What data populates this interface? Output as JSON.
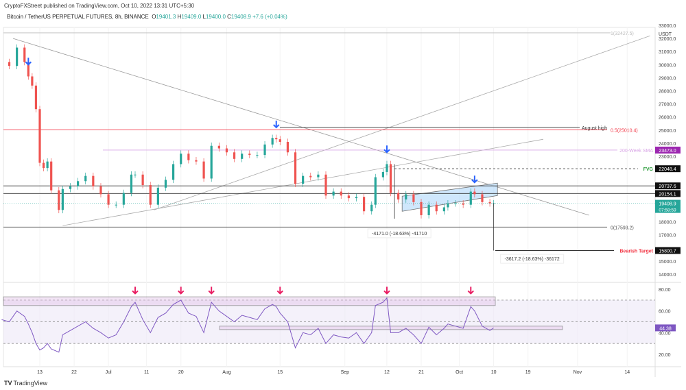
{
  "header": {
    "published": "CryptoFXStreet published on TradingView.com, Oct 10, 2022 13:31 UTC+5:30",
    "symbol": "Bitcoin / TetherUS PERPETUAL FUTURES, 8h, BINANCE",
    "o_label": "O",
    "o": "19401.3",
    "h_label": "H",
    "h": "19409.0",
    "l_label": "L",
    "l": "19400.0",
    "c_label": "C",
    "c": "19408.9",
    "change": "+7.6 (+0.04%)"
  },
  "footer": {
    "brand": "TradingView"
  },
  "colors": {
    "up": "#26a69a",
    "down": "#ef5350",
    "rsi": "#7e57c2",
    "arrow_blue": "#2962ff",
    "arrow_pink": "#e91e63",
    "fib": "#f23645",
    "sma": "#c678dd",
    "fvg": "#2e9e3e",
    "channel": "#bbdefb"
  },
  "chart_data": {
    "type": "candlestick",
    "currency": "USDT",
    "price_ticks": [
      "33000.0",
      "32000.0",
      "31000.0",
      "30000.0",
      "29000.0",
      "28000.0",
      "27000.0",
      "26000.0",
      "25000.0",
      "24000.0",
      "23000.0",
      "18000.0",
      "17000.0",
      "15000.0",
      "14000.0"
    ],
    "rsi_ticks": [
      "80.00",
      "60.00",
      "40.00",
      "20.00"
    ],
    "x_ticks": [
      {
        "date": "2022-06-13",
        "label": "13"
      },
      {
        "date": "2022-06-22",
        "label": "22"
      },
      {
        "date": "2022-07-01",
        "label": "Jul"
      },
      {
        "date": "2022-07-11",
        "label": "11"
      },
      {
        "date": "2022-07-20",
        "label": "20"
      },
      {
        "date": "2022-08-01",
        "label": "Aug"
      },
      {
        "date": "2022-08-15",
        "label": "15"
      },
      {
        "date": "2022-09-01",
        "label": "Sep"
      },
      {
        "date": "2022-09-12",
        "label": "12"
      },
      {
        "date": "2022-09-21",
        "label": "21"
      },
      {
        "date": "2022-10-01",
        "label": "Oct"
      },
      {
        "date": "2022-10-10",
        "label": "10"
      },
      {
        "date": "2022-10-19",
        "label": "19"
      },
      {
        "date": "2022-11-01",
        "label": "Nov"
      },
      {
        "date": "2022-11-14",
        "label": "14"
      }
    ],
    "closes": [
      [
        "2022-06-03",
        30200
      ],
      [
        "2022-06-05",
        29900
      ],
      [
        "2022-06-07",
        31300
      ],
      [
        "2022-06-09",
        30200
      ],
      [
        "2022-06-10",
        29100
      ],
      [
        "2022-06-11",
        28400
      ],
      [
        "2022-06-12",
        26600
      ],
      [
        "2022-06-13",
        22500
      ],
      [
        "2022-06-14",
        22100
      ],
      [
        "2022-06-15",
        22600
      ],
      [
        "2022-06-16",
        20400
      ],
      [
        "2022-06-18",
        18900
      ],
      [
        "2022-06-19",
        20500
      ],
      [
        "2022-06-21",
        20700
      ],
      [
        "2022-06-23",
        21100
      ],
      [
        "2022-06-25",
        21500
      ],
      [
        "2022-06-27",
        20700
      ],
      [
        "2022-06-29",
        20100
      ],
      [
        "2022-07-01",
        19300
      ],
      [
        "2022-07-03",
        19300
      ],
      [
        "2022-07-05",
        20200
      ],
      [
        "2022-07-07",
        21600
      ],
      [
        "2022-07-08",
        21600
      ],
      [
        "2022-07-10",
        20800
      ],
      [
        "2022-07-12",
        19300
      ],
      [
        "2022-07-14",
        20600
      ],
      [
        "2022-07-16",
        21200
      ],
      [
        "2022-07-18",
        22400
      ],
      [
        "2022-07-20",
        23200
      ],
      [
        "2022-07-22",
        22700
      ],
      [
        "2022-07-24",
        22600
      ],
      [
        "2022-07-26",
        21300
      ],
      [
        "2022-07-28",
        23800
      ],
      [
        "2022-07-30",
        23600
      ],
      [
        "2022-08-01",
        23300
      ],
      [
        "2022-08-03",
        22800
      ],
      [
        "2022-08-05",
        23200
      ],
      [
        "2022-08-07",
        23100
      ],
      [
        "2022-08-09",
        23100
      ],
      [
        "2022-08-11",
        23900
      ],
      [
        "2022-08-13",
        24400
      ],
      [
        "2022-08-14",
        24300
      ],
      [
        "2022-08-15",
        24100
      ],
      [
        "2022-08-17",
        23300
      ],
      [
        "2022-08-19",
        20900
      ],
      [
        "2022-08-21",
        21500
      ],
      [
        "2022-08-23",
        21400
      ],
      [
        "2022-08-25",
        21600
      ],
      [
        "2022-08-27",
        20000
      ],
      [
        "2022-08-29",
        20300
      ],
      [
        "2022-08-31",
        20000
      ],
      [
        "2022-09-02",
        19800
      ],
      [
        "2022-09-04",
        19900
      ],
      [
        "2022-09-06",
        18800
      ],
      [
        "2022-09-08",
        19300
      ],
      [
        "2022-09-09",
        21400
      ],
      [
        "2022-09-11",
        21800
      ],
      [
        "2022-09-12",
        22400
      ],
      [
        "2022-09-13",
        20200
      ],
      [
        "2022-09-15",
        19700
      ],
      [
        "2022-09-17",
        20100
      ],
      [
        "2022-09-19",
        19500
      ],
      [
        "2022-09-21",
        18500
      ],
      [
        "2022-09-23",
        19300
      ],
      [
        "2022-09-25",
        18800
      ],
      [
        "2022-09-27",
        19100
      ],
      [
        "2022-09-28",
        19400
      ],
      [
        "2022-09-30",
        19400
      ],
      [
        "2022-10-02",
        19300
      ],
      [
        "2022-10-04",
        20300
      ],
      [
        "2022-10-05",
        20100
      ],
      [
        "2022-10-07",
        19500
      ],
      [
        "2022-10-09",
        19400
      ],
      [
        "2022-10-10",
        19408.9
      ]
    ],
    "rsi": [
      [
        "2022-06-03",
        52
      ],
      [
        "2022-06-05",
        50
      ],
      [
        "2022-06-07",
        60
      ],
      [
        "2022-06-09",
        55
      ],
      [
        "2022-06-10",
        48
      ],
      [
        "2022-06-11",
        40
      ],
      [
        "2022-06-12",
        30
      ],
      [
        "2022-06-13",
        24
      ],
      [
        "2022-06-14",
        26
      ],
      [
        "2022-06-15",
        30
      ],
      [
        "2022-06-16",
        25
      ],
      [
        "2022-06-18",
        22
      ],
      [
        "2022-06-19",
        38
      ],
      [
        "2022-06-21",
        42
      ],
      [
        "2022-06-23",
        46
      ],
      [
        "2022-06-25",
        50
      ],
      [
        "2022-06-27",
        44
      ],
      [
        "2022-06-29",
        40
      ],
      [
        "2022-07-01",
        35
      ],
      [
        "2022-07-03",
        38
      ],
      [
        "2022-07-05",
        50
      ],
      [
        "2022-07-07",
        64
      ],
      [
        "2022-07-08",
        68
      ],
      [
        "2022-07-10",
        52
      ],
      [
        "2022-07-12",
        40
      ],
      [
        "2022-07-14",
        54
      ],
      [
        "2022-07-16",
        58
      ],
      [
        "2022-07-18",
        66
      ],
      [
        "2022-07-20",
        70
      ],
      [
        "2022-07-22",
        58
      ],
      [
        "2022-07-24",
        55
      ],
      [
        "2022-07-26",
        40
      ],
      [
        "2022-07-28",
        68
      ],
      [
        "2022-07-30",
        60
      ],
      [
        "2022-08-01",
        55
      ],
      [
        "2022-08-03",
        50
      ],
      [
        "2022-08-05",
        56
      ],
      [
        "2022-08-07",
        54
      ],
      [
        "2022-08-09",
        52
      ],
      [
        "2022-08-11",
        62
      ],
      [
        "2022-08-13",
        66
      ],
      [
        "2022-08-14",
        64
      ],
      [
        "2022-08-15",
        58
      ],
      [
        "2022-08-17",
        50
      ],
      [
        "2022-08-19",
        26
      ],
      [
        "2022-08-21",
        40
      ],
      [
        "2022-08-23",
        38
      ],
      [
        "2022-08-25",
        44
      ],
      [
        "2022-08-27",
        30
      ],
      [
        "2022-08-29",
        38
      ],
      [
        "2022-08-31",
        36
      ],
      [
        "2022-09-02",
        35
      ],
      [
        "2022-09-04",
        40
      ],
      [
        "2022-09-06",
        30
      ],
      [
        "2022-09-08",
        40
      ],
      [
        "2022-09-09",
        65
      ],
      [
        "2022-09-11",
        68
      ],
      [
        "2022-09-12",
        72
      ],
      [
        "2022-09-13",
        40
      ],
      [
        "2022-09-15",
        40
      ],
      [
        "2022-09-17",
        44
      ],
      [
        "2022-09-19",
        38
      ],
      [
        "2022-09-21",
        30
      ],
      [
        "2022-09-23",
        45
      ],
      [
        "2022-09-25",
        38
      ],
      [
        "2022-09-27",
        44
      ],
      [
        "2022-09-28",
        48
      ],
      [
        "2022-09-30",
        46
      ],
      [
        "2022-10-02",
        44
      ],
      [
        "2022-10-04",
        64
      ],
      [
        "2022-10-05",
        60
      ],
      [
        "2022-10-07",
        46
      ],
      [
        "2022-10-09",
        42
      ],
      [
        "2022-10-10",
        44.38
      ]
    ],
    "levels": [
      {
        "price": 32427.5,
        "label": "1(32427.5)",
        "color": "#bbb"
      },
      {
        "price": 25200,
        "label": "August high",
        "color": "#333"
      },
      {
        "price": 25010.4,
        "label": "0.5(25010.4)",
        "color": "#f23645"
      },
      {
        "price": 23473.0,
        "label": "200-Week SMA",
        "color": "#d9a6e6",
        "tag": "23473.0",
        "tag_color": "#9c27b0"
      },
      {
        "price": 22048.4,
        "label": "FVG",
        "color": "#333",
        "dashed": true,
        "tag": "22048.4",
        "tag_color": "#111"
      },
      {
        "price": 20737.6,
        "color": "#333",
        "tag": "20737.6",
        "tag_color": "#111"
      },
      {
        "price": 20154.1,
        "color": "#333",
        "tag": "20154.1",
        "tag_color": "#111"
      },
      {
        "price": 17593.2,
        "label": "0(17593.2)",
        "color": "#555"
      },
      {
        "price": 15800.7,
        "label": "Bearish Target",
        "color": "#333",
        "tag": "15800.7",
        "tag_color": "#111"
      }
    ],
    "last_price": {
      "value": "19408.9",
      "countdown": "07:58:59"
    },
    "last_rsi": "44.38",
    "measurements": [
      "-4171.0 (-18.63%) -41710",
      "-3617.2 (-18.63%) -36172"
    ],
    "peak_arrows": [
      "2022-06-10",
      "2022-08-14",
      "2022-09-12",
      "2022-10-05"
    ],
    "rsi_arrows": [
      "2022-07-08",
      "2022-07-20",
      "2022-07-28",
      "2022-08-15",
      "2022-09-12",
      "2022-10-04"
    ]
  }
}
